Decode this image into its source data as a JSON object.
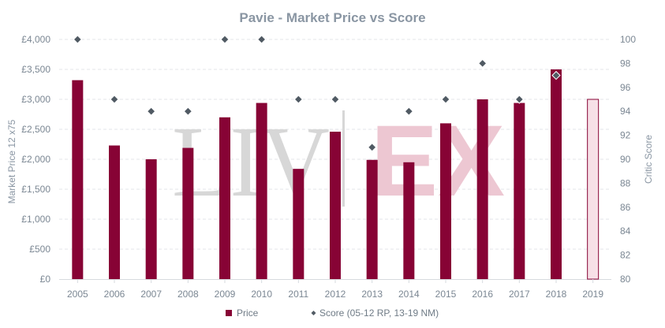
{
  "colors": {
    "bar": "#870335",
    "bar_projected_fill": "#f7e0e7",
    "marker": "#505a63",
    "grid": "#e3e6ea",
    "watermark_grey": "#d7d7d7",
    "watermark_pink": "#edc7d2"
  },
  "watermark": {
    "left": "LIV",
    "right": "EX"
  },
  "chart_data": {
    "type": "bar",
    "title": "Pavie - Market Price vs Score",
    "ylabel": "Market Price 12 x75",
    "y2label": "Critic Score",
    "categories": [
      "2005",
      "2006",
      "2007",
      "2008",
      "2009",
      "2010",
      "2011",
      "2012",
      "2013",
      "2014",
      "2015",
      "2016",
      "2017",
      "2018",
      "2019"
    ],
    "ylim": [
      0,
      4000
    ],
    "y2lim": [
      80,
      100
    ],
    "yticks": [
      "£0",
      "£500",
      "£1,000",
      "£1,500",
      "£2,000",
      "£2,500",
      "£3,000",
      "£3,500",
      "£4,000"
    ],
    "y2ticks": [
      "80",
      "82",
      "84",
      "86",
      "88",
      "90",
      "92",
      "94",
      "96",
      "98",
      "100"
    ],
    "grid": true,
    "legend_position": "bottom",
    "series": [
      {
        "name": "Price",
        "kind": "bar",
        "values": [
          3320,
          2230,
          2000,
          2190,
          2700,
          2940,
          1840,
          2460,
          1990,
          1950,
          2600,
          3000,
          2940,
          3500,
          3000
        ],
        "projected_last": true
      },
      {
        "name": "Score (05-12 RP, 13-19 NM)",
        "kind": "marker",
        "axis": "right",
        "values": [
          100,
          95,
          94,
          94,
          100,
          100,
          95,
          95,
          91,
          94,
          95,
          98,
          95,
          97,
          null
        ]
      }
    ]
  }
}
